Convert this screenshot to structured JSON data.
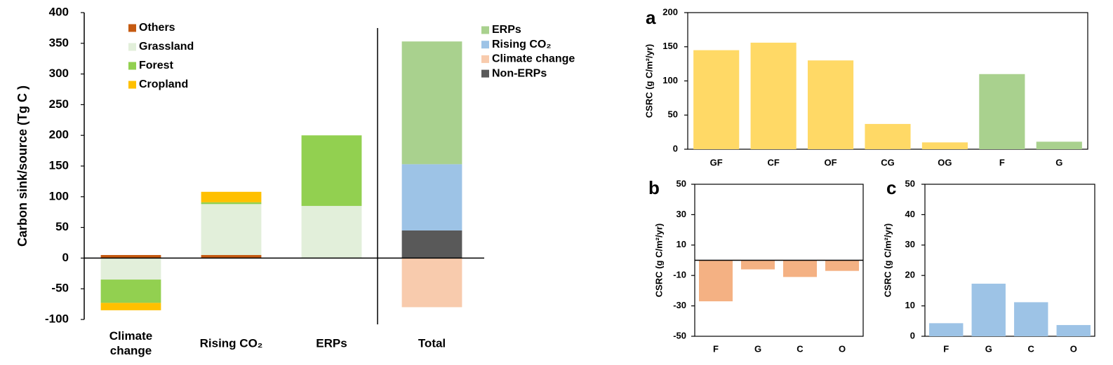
{
  "chart_data": [
    {
      "type": "bar",
      "stacked": true,
      "ylabel": "Carbon sink/source (Tg C )",
      "categories": [
        "Climate change",
        "Rising CO₂",
        "ERPs",
        "Total"
      ],
      "ylim": [
        -100,
        400
      ],
      "yticks": [
        -100,
        -50,
        0,
        50,
        100,
        150,
        200,
        250,
        300,
        350,
        400
      ],
      "series": [
        {
          "name": "Others",
          "color": "#c55a11",
          "legend": "upper left",
          "values": [
            5,
            5,
            null,
            null
          ]
        },
        {
          "name": "Grassland",
          "color": "#e2efda",
          "legend": "upper left",
          "values": [
            -35,
            83,
            85,
            null
          ]
        },
        {
          "name": "Forest",
          "color": "#92d050",
          "legend": "upper left",
          "values": [
            -38,
            3,
            115,
            null
          ]
        },
        {
          "name": "Cropland",
          "color": "#ffc000",
          "legend": "upper left",
          "values": [
            -12,
            17,
            null,
            null
          ]
        },
        {
          "name": "ERPs",
          "color": "#a9d18e",
          "legend": "upper right",
          "values": [
            null,
            null,
            null,
            200
          ]
        },
        {
          "name": "Rising CO₂",
          "color": "#9dc3e6",
          "legend": "upper right",
          "values": [
            null,
            null,
            null,
            108
          ]
        },
        {
          "name": "Climate change",
          "color": "#f8cbad",
          "legend": "upper right",
          "values": [
            null,
            null,
            null,
            -80
          ]
        },
        {
          "name": "Non-ERPs",
          "color": "#595959",
          "legend": "upper right",
          "values": [
            null,
            null,
            null,
            45
          ]
        }
      ]
    },
    {
      "type": "bar",
      "panel_label": "a",
      "ylabel": "CSRC (g C/m²/yr)",
      "categories": [
        "GF",
        "CF",
        "OF",
        "CG",
        "OG",
        "F",
        "G"
      ],
      "values": [
        145,
        156,
        130,
        37,
        10,
        110,
        11
      ],
      "colors": [
        "#ffd966",
        "#ffd966",
        "#ffd966",
        "#ffd966",
        "#ffd966",
        "#a9d18e",
        "#a9d18e"
      ],
      "ylim": [
        0,
        200
      ],
      "yticks": [
        0,
        50,
        100,
        150,
        200
      ]
    },
    {
      "type": "bar",
      "panel_label": "b",
      "ylabel": "CSRC (g C/m²/yr)",
      "categories": [
        "F",
        "G",
        "C",
        "O"
      ],
      "values": [
        -27,
        -6,
        -11,
        -7
      ],
      "color": "#f4b183",
      "ylim": [
        -50,
        50
      ],
      "yticks": [
        -50,
        -30,
        -10,
        10,
        30,
        50
      ]
    },
    {
      "type": "bar",
      "panel_label": "c",
      "ylabel": "CSRC (g C/m²/yr)",
      "categories": [
        "F",
        "G",
        "C",
        "O"
      ],
      "values": [
        4.3,
        17.3,
        11.2,
        3.7
      ],
      "color": "#9dc3e6",
      "ylim": [
        0,
        50
      ],
      "yticks": [
        0,
        10,
        20,
        30,
        40,
        50
      ]
    }
  ]
}
